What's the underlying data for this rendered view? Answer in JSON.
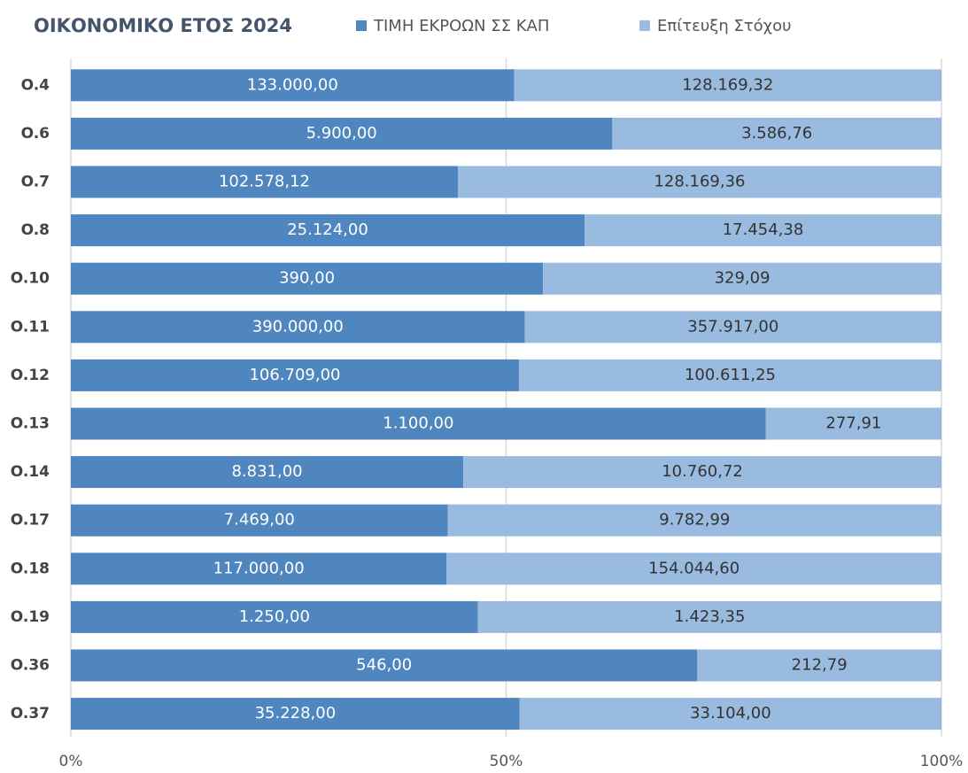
{
  "chart_data": {
    "type": "bar",
    "orientation": "horizontal",
    "stack": "percent",
    "title": "ΟΙΚΟΝΟΜΙΚΟ ΕΤΟΣ 2024",
    "categories": [
      "O.4",
      "O.6",
      "O.7",
      "O.8",
      "O.10",
      "O.11",
      "O.12",
      "O.13",
      "O.14",
      "O.17",
      "O.18",
      "O.19",
      "O.36",
      "O.37"
    ],
    "series": [
      {
        "name": "ΤΙΜΗ ΕΚΡΟΩΝ ΣΣ ΚΑΠ",
        "color": "#4f86bf",
        "values": [
          133000,
          5900,
          102578.12,
          25124,
          390,
          390000,
          106709,
          1100,
          8831,
          7469,
          117000,
          1250,
          546,
          35228
        ],
        "value_labels": [
          "133.000,00",
          "5.900,00",
          "102.578,12",
          "25.124,00",
          "390,00",
          "390.000,00",
          "106.709,00",
          "1.100,00",
          "8.831,00",
          "7.469,00",
          "117.000,00",
          "1.250,00",
          "546,00",
          "35.228,00"
        ]
      },
      {
        "name": "Επίτευξη Στόχου",
        "color": "#9abbe0",
        "values": [
          128169.32,
          3586.76,
          128169.36,
          17454.38,
          329.09,
          357917,
          100611.25,
          277.91,
          10760.72,
          9782.99,
          154044.6,
          1423.35,
          212.79,
          33104
        ],
        "value_labels": [
          "128.169,32",
          "3.586,76",
          "128.169,36",
          "17.454,38",
          "329,09",
          "357.917,00",
          "100.611,25",
          "277,91",
          "10.760,72",
          "9.782,99",
          "154.044,60",
          "1.423,35",
          "212,79",
          "33.104,00"
        ]
      }
    ],
    "xlim": [
      0,
      100
    ],
    "xticks": [
      {
        "value": 0,
        "label": "0%"
      },
      {
        "value": 50,
        "label": "50%"
      },
      {
        "value": 100,
        "label": "100%"
      }
    ],
    "grid": true,
    "legend": "top"
  }
}
